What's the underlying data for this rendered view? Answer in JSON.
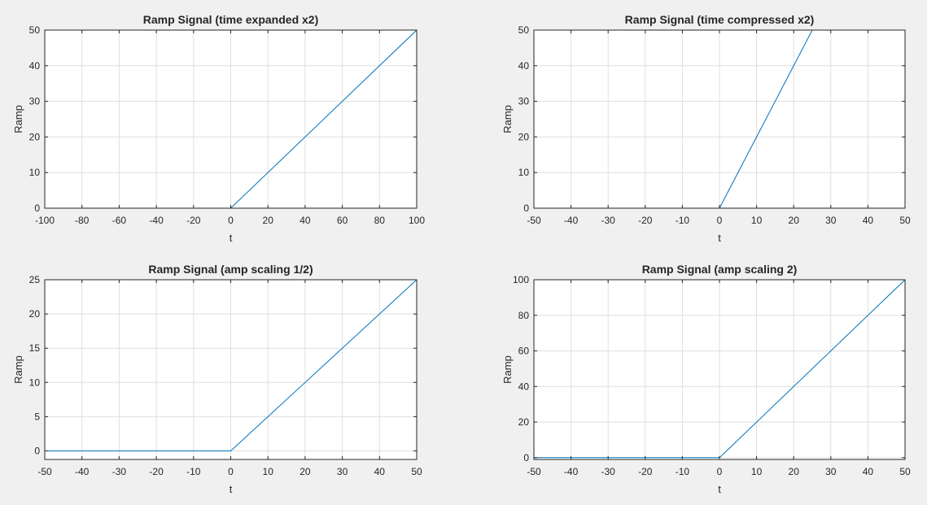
{
  "chart_data": [
    {
      "type": "line",
      "title": "Ramp Signal (time expanded x2)",
      "xlabel": "t",
      "ylabel": "Ramp",
      "xlim": [
        -100,
        100
      ],
      "ylim": [
        0,
        50
      ],
      "xticks": [
        -100,
        -80,
        -60,
        -40,
        -20,
        0,
        20,
        40,
        60,
        80,
        100
      ],
      "yticks": [
        0,
        10,
        20,
        30,
        40,
        50
      ],
      "grid": true,
      "series": [
        {
          "x": [
            -100,
            0,
            100
          ],
          "y": [
            0,
            0,
            50
          ]
        }
      ]
    },
    {
      "type": "line",
      "title": "Ramp Signal (time compressed x2)",
      "xlabel": "t",
      "ylabel": "Ramp",
      "xlim": [
        -50,
        50
      ],
      "ylim": [
        0,
        50
      ],
      "xticks": [
        -50,
        -40,
        -30,
        -20,
        -10,
        0,
        10,
        20,
        30,
        40,
        50
      ],
      "yticks": [
        0,
        10,
        20,
        30,
        40,
        50
      ],
      "grid": true,
      "series": [
        {
          "x": [
            -25,
            0,
            25
          ],
          "y": [
            0,
            0,
            50
          ]
        }
      ]
    },
    {
      "type": "line",
      "title": "Ramp Signal (amp scaling 1/2)",
      "xlabel": "t",
      "ylabel": "Ramp",
      "xlim": [
        -50,
        50
      ],
      "ylim": [
        -1.25,
        25
      ],
      "xticks": [
        -50,
        -40,
        -30,
        -20,
        -10,
        0,
        10,
        20,
        30,
        40,
        50
      ],
      "yticks": [
        0,
        5,
        10,
        15,
        20,
        25
      ],
      "grid": true,
      "series": [
        {
          "x": [
            -50,
            0,
            50
          ],
          "y": [
            0,
            0,
            25
          ]
        }
      ]
    },
    {
      "type": "line",
      "title": "Ramp Signal (amp scaling 2)",
      "xlabel": "t",
      "ylabel": "Ramp",
      "xlim": [
        -50,
        50
      ],
      "ylim": [
        -1,
        100
      ],
      "xticks": [
        -50,
        -40,
        -30,
        -20,
        -10,
        0,
        10,
        20,
        30,
        40,
        50
      ],
      "yticks": [
        0,
        20,
        40,
        60,
        80,
        100
      ],
      "grid": true,
      "series": [
        {
          "x": [
            -50,
            0,
            50
          ],
          "y": [
            0,
            0,
            100
          ]
        }
      ]
    }
  ],
  "colors": {
    "line": "#0072bd",
    "grid": "#dfdfdf",
    "axes": "#262626",
    "plot_bg": "#ffffff",
    "figure_bg": "#f0f0f0"
  }
}
